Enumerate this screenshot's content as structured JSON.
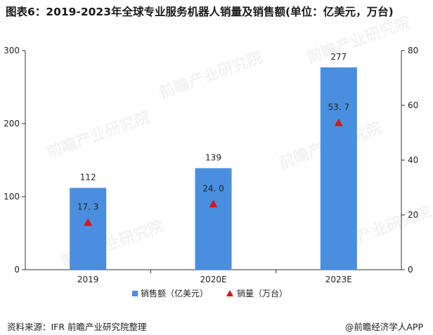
{
  "title": "图表6：2019-2023年全球专业服务机器人销量及销售额(单位：亿美元，万台)",
  "source": "资料来源：IFR 前瞻产业研究院整理",
  "credit": "@前瞻经济学人APP",
  "watermark": "前瞻产业研究院",
  "colors": {
    "bar": "#4a8fdf",
    "marker": "#d9141c",
    "axis": "#333333",
    "grid": "#d9d9d9"
  },
  "chart_data": {
    "type": "bar",
    "categories": [
      "2019",
      "2020E",
      "2023E"
    ],
    "series": [
      {
        "name": "销售额（亿美元）",
        "kind": "bar",
        "axis": "left",
        "values": [
          112,
          139,
          277
        ],
        "labels": [
          "112",
          "139",
          "277"
        ]
      },
      {
        "name": "销量（万台）",
        "kind": "scatter",
        "marker": "triangle",
        "axis": "right",
        "values": [
          17.3,
          24.0,
          53.7
        ],
        "labels": [
          "17. 3",
          "24. 0",
          "53. 7"
        ]
      }
    ],
    "y_left": {
      "min": 0,
      "max": 300,
      "ticks": [
        "0",
        "100",
        "200",
        "300"
      ]
    },
    "y_right": {
      "min": 0,
      "max": 80,
      "ticks": [
        "0",
        "20",
        "40",
        "60",
        "80"
      ]
    },
    "legend_position": "bottom",
    "grid": false
  }
}
